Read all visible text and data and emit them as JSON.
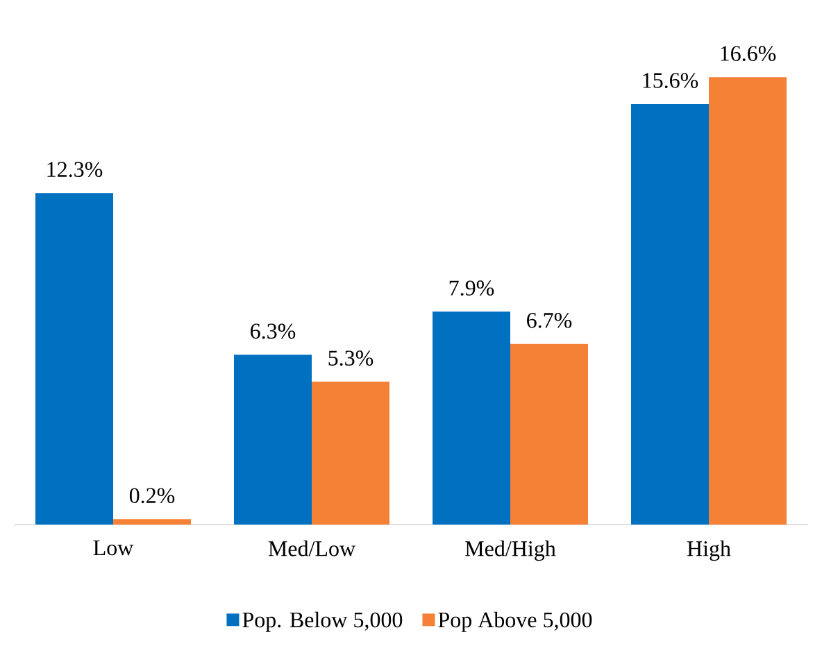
{
  "chart_data": {
    "type": "bar",
    "categories": [
      "Low",
      "Med/Low",
      "Med/High",
      "High"
    ],
    "series": [
      {
        "name": "Pop. Below 5,000",
        "color": "#0070c0",
        "values": [
          12.3,
          6.3,
          7.9,
          15.6
        ],
        "value_labels": [
          "12.3%",
          "6.3%",
          "7.9%",
          "15.6%"
        ]
      },
      {
        "name": "Pop Above 5,000",
        "color": "#f58136",
        "values": [
          0.2,
          5.3,
          6.7,
          16.6
        ],
        "value_labels": [
          "0.2%",
          "5.3%",
          "6.7%",
          "16.6%"
        ]
      }
    ],
    "legend": "bottom"
  }
}
